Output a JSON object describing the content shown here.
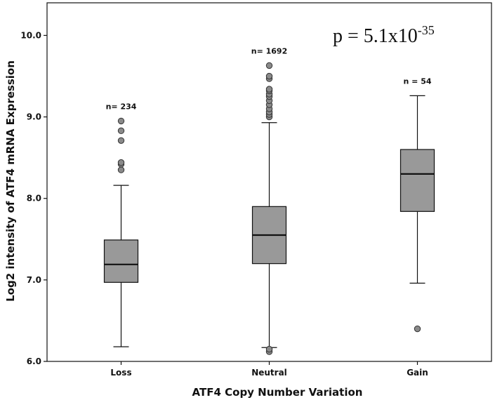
{
  "chart_data": {
    "type": "box",
    "xlabel": "ATF4 Copy Number Variation",
    "ylabel": "Log2 intensity of ATF4 mRNA Expression",
    "ylim": [
      6.0,
      10.4
    ],
    "yticks": [
      "6.0",
      "7.0",
      "8.0",
      "9.0",
      "10.0"
    ],
    "grid": false,
    "annotation": {
      "base": "p = 5.1x10",
      "exponent": "-35"
    },
    "categories": [
      "Loss",
      "Neutral",
      "Gain"
    ],
    "groups": [
      {
        "category": "Loss",
        "n_label": "n= 234",
        "whisker_low": 6.18,
        "q1": 6.97,
        "median": 7.19,
        "q3": 7.49,
        "whisker_high": 8.16,
        "outliers": [
          8.35,
          8.42,
          8.44,
          8.71,
          8.83,
          8.95
        ]
      },
      {
        "category": "Neutral",
        "n_label": "n= 1692",
        "whisker_low": 6.17,
        "q1": 7.2,
        "median": 7.55,
        "q3": 7.9,
        "whisker_high": 8.93,
        "outliers": [
          6.12,
          6.15,
          9.0,
          9.03,
          9.06,
          9.1,
          9.15,
          9.2,
          9.25,
          9.28,
          9.32,
          9.34,
          9.47,
          9.5,
          9.63
        ]
      },
      {
        "category": "Gain",
        "n_label": "n = 54",
        "whisker_low": 6.96,
        "q1": 7.84,
        "median": 8.3,
        "q3": 8.6,
        "whisker_high": 9.26,
        "outliers": [
          6.4
        ]
      }
    ]
  }
}
